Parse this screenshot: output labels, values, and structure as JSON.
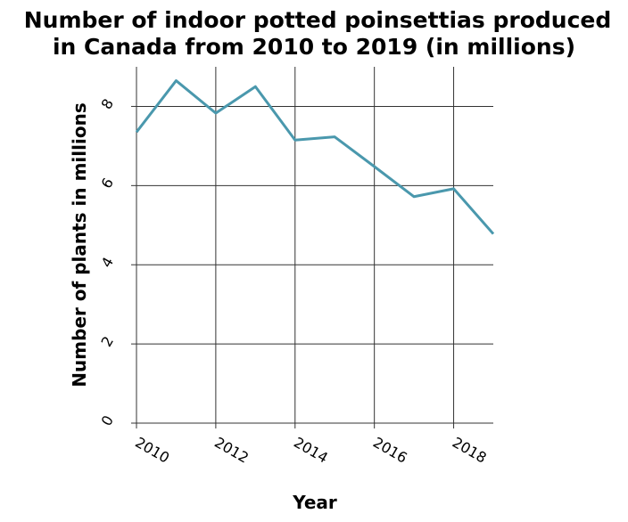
{
  "chart_data": {
    "type": "line",
    "title_lines": [
      "Number of indoor potted poinsettias produced",
      "in Canada from 2010 to 2019 (in millions)"
    ],
    "xlabel": "Year",
    "ylabel": "Number of plants in millions",
    "xlim": [
      2010,
      2019
    ],
    "ylim": [
      0,
      9
    ],
    "x_ticks": [
      2010,
      2012,
      2014,
      2016,
      2018
    ],
    "y_ticks": [
      0,
      2,
      4,
      6,
      8
    ],
    "x_tick_labels": [
      "2010",
      "2012",
      "2014",
      "2016",
      "2018"
    ],
    "y_tick_labels": [
      "0",
      "2",
      "4",
      "6",
      "8"
    ],
    "grid": true,
    "series": [
      {
        "color": "#4a98ad",
        "x": [
          2010,
          2011,
          2012,
          2013,
          2014,
          2015,
          2016,
          2017,
          2018,
          2019
        ],
        "y": [
          7.35,
          8.65,
          7.83,
          8.5,
          7.15,
          7.23,
          6.48,
          5.72,
          5.92,
          4.78
        ]
      }
    ]
  }
}
